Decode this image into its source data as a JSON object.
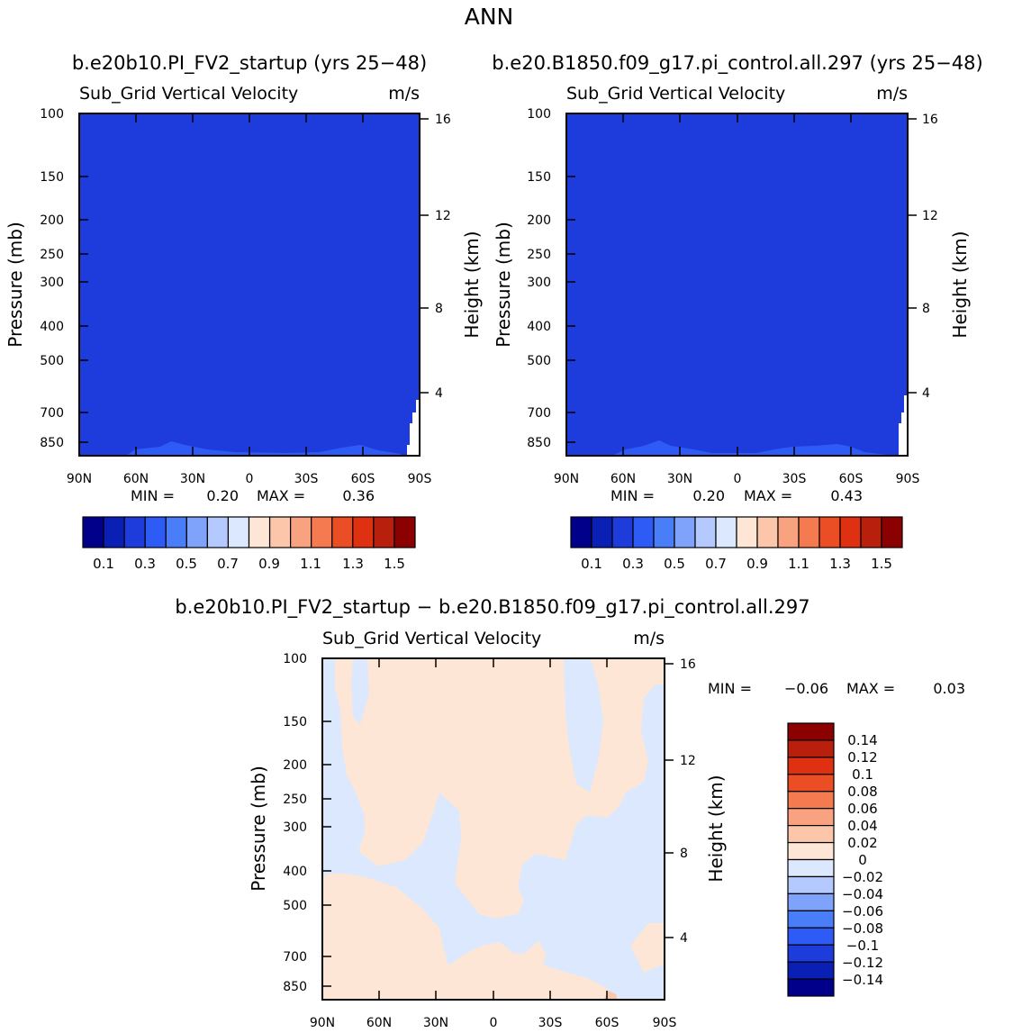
{
  "main_title": "ANN",
  "colorbar_abs": {
    "colors": [
      "#00008b",
      "#0a1fb4",
      "#1e3cdc",
      "#2e5bf5",
      "#4a7ef8",
      "#7fa3fb",
      "#b4c9fd",
      "#dce8fe",
      "#fde6d6",
      "#fbc6aa",
      "#f8a27f",
      "#f57a50",
      "#eb4d24",
      "#e03012",
      "#b91f0d",
      "#8b0000"
    ],
    "labels": [
      "0.1",
      "0.3",
      "0.5",
      "0.7",
      "0.9",
      "1.1",
      "1.3",
      "1.5"
    ]
  },
  "colorbar_diff": {
    "colors": [
      "#8b0000",
      "#b91f0d",
      "#e03012",
      "#eb4d24",
      "#f57a50",
      "#f8a27f",
      "#fbc6aa",
      "#fde6d6",
      "#dce8fe",
      "#b4c9fd",
      "#7fa3fb",
      "#4a7ef8",
      "#2e5bf5",
      "#1e3cdc",
      "#0a1fb4",
      "#00008b"
    ],
    "labels": [
      "0.14",
      "0.12",
      "0.1",
      "0.08",
      "0.06",
      "0.04",
      "0.02",
      "0",
      "−0.02",
      "−0.04",
      "−0.06",
      "−0.08",
      "−0.1",
      "−0.12",
      "−0.14"
    ]
  },
  "chart_data": [
    {
      "type": "heatmap",
      "title": "b.e20b10.PI_FV2_startup (yrs 25−48)",
      "subtitle": "Sub_Grid Vertical Velocity",
      "units": "m/s",
      "ylabel": "Pressure (mb)",
      "y2label": "Height (km)",
      "x_ticks": [
        "90N",
        "60N",
        "30N",
        "0",
        "30S",
        "60S",
        "90S"
      ],
      "y_ticks": [
        "100",
        "150",
        "200",
        "250",
        "300",
        "400",
        "500",
        "700",
        "850"
      ],
      "y2_ticks": [
        "16",
        "12",
        "8",
        "4"
      ],
      "min_label": "MIN =",
      "min": "0.20",
      "max_label": "MAX =",
      "max": "0.36",
      "dominant_fill": "#1e3cdc"
    },
    {
      "type": "heatmap",
      "title": "b.e20.B1850.f09_g17.pi_control.all.297 (yrs 25−48)",
      "subtitle": "Sub_Grid Vertical Velocity",
      "units": "m/s",
      "ylabel": "Pressure (mb)",
      "y2label": "Height (km)",
      "x_ticks": [
        "90N",
        "60N",
        "30N",
        "0",
        "30S",
        "60S",
        "90S"
      ],
      "y_ticks": [
        "100",
        "150",
        "200",
        "250",
        "300",
        "400",
        "500",
        "700",
        "850"
      ],
      "y2_ticks": [
        "16",
        "12",
        "8",
        "4"
      ],
      "min_label": "MIN =",
      "min": "0.20",
      "max_label": "MAX =",
      "max": "0.43",
      "dominant_fill": "#1e3cdc"
    },
    {
      "type": "heatmap",
      "title": "b.e20b10.PI_FV2_startup − b.e20.B1850.f09_g17.pi_control.all.297",
      "subtitle": "Sub_Grid Vertical Velocity",
      "units": "m/s",
      "ylabel": "Pressure (mb)",
      "y2label": "Height (km)",
      "x_ticks": [
        "90N",
        "60N",
        "30N",
        "0",
        "30S",
        "60S",
        "90S"
      ],
      "y_ticks": [
        "100",
        "150",
        "200",
        "250",
        "300",
        "400",
        "500",
        "700",
        "850"
      ],
      "y2_ticks": [
        "16",
        "12",
        "8",
        "4"
      ],
      "min_label": "MIN =",
      "min": "−0.06",
      "max_label": "MAX =",
      "max": "0.03",
      "dominant_fill": "#fde6d6"
    }
  ]
}
